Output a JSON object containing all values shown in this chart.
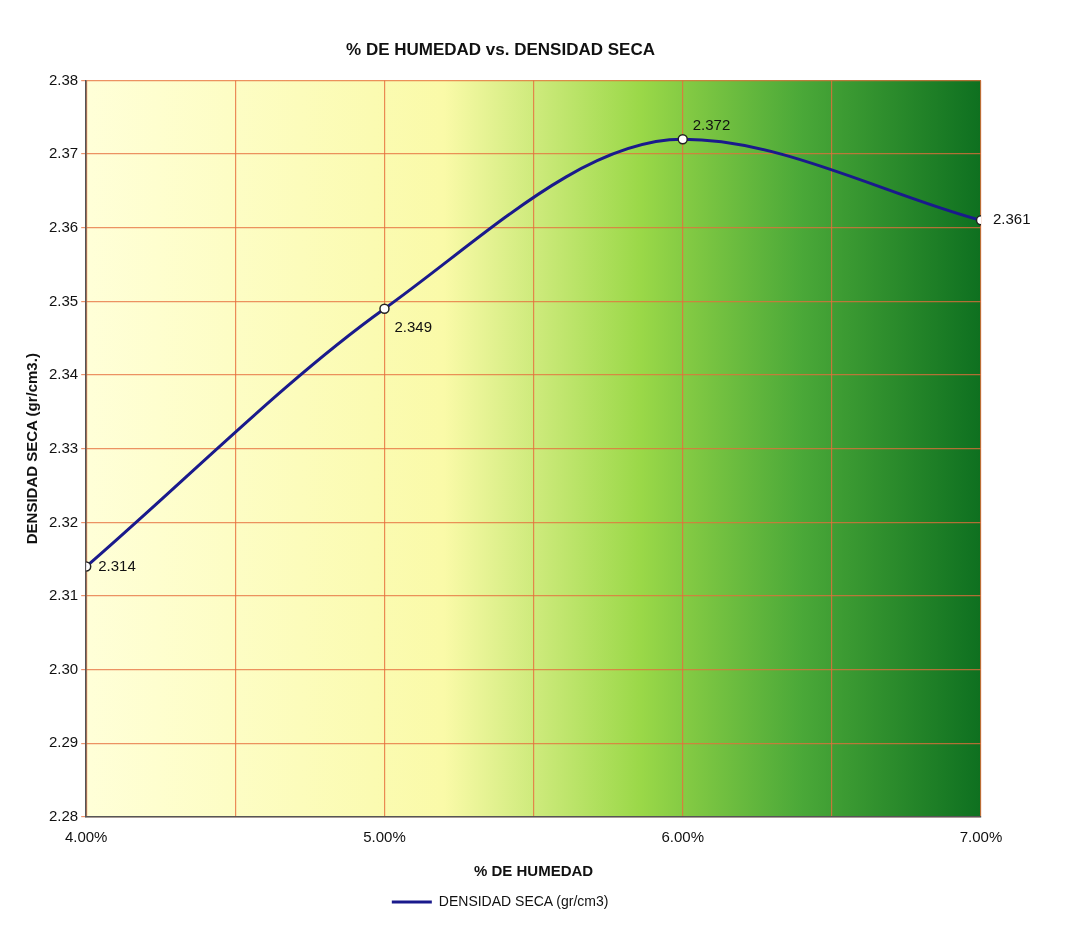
{
  "chart_data": {
    "type": "line",
    "title": "% DE HUMEDAD vs. DENSIDAD SECA",
    "xlabel": "% DE HUMEDAD",
    "ylabel": "DENSIDAD SECA (gr/cm3.)",
    "x": [
      4,
      5,
      6,
      7
    ],
    "series": [
      {
        "name": "DENSIDAD SECA (gr/cm3)",
        "color": "#1a1a8c",
        "values": [
          2.314,
          2.349,
          2.372,
          2.361
        ]
      }
    ],
    "xlim": [
      4,
      7
    ],
    "xticks": [
      {
        "value": 4,
        "label": "4.00%"
      },
      {
        "value": 4.5,
        "label": null
      },
      {
        "value": 5,
        "label": "5.00%"
      },
      {
        "value": 5.5,
        "label": null
      },
      {
        "value": 6,
        "label": "6.00%"
      },
      {
        "value": 6.5,
        "label": null
      },
      {
        "value": 7,
        "label": "7.00%"
      }
    ],
    "ylim": [
      2.28,
      2.38
    ],
    "yticks": [
      {
        "value": 2.28,
        "label": "2.28"
      },
      {
        "value": 2.29,
        "label": "2.29"
      },
      {
        "value": 2.3,
        "label": "2.30"
      },
      {
        "value": 2.31,
        "label": "2.31"
      },
      {
        "value": 2.32,
        "label": "2.32"
      },
      {
        "value": 2.33,
        "label": "2.33"
      },
      {
        "value": 2.34,
        "label": "2.34"
      },
      {
        "value": 2.35,
        "label": "2.35"
      },
      {
        "value": 2.36,
        "label": "2.36"
      },
      {
        "value": 2.37,
        "label": "2.37"
      },
      {
        "value": 2.38,
        "label": "2.38"
      }
    ],
    "grid": true,
    "legend": "bottom",
    "marker": "circle",
    "line_style": "solid",
    "data_labels": true
  }
}
